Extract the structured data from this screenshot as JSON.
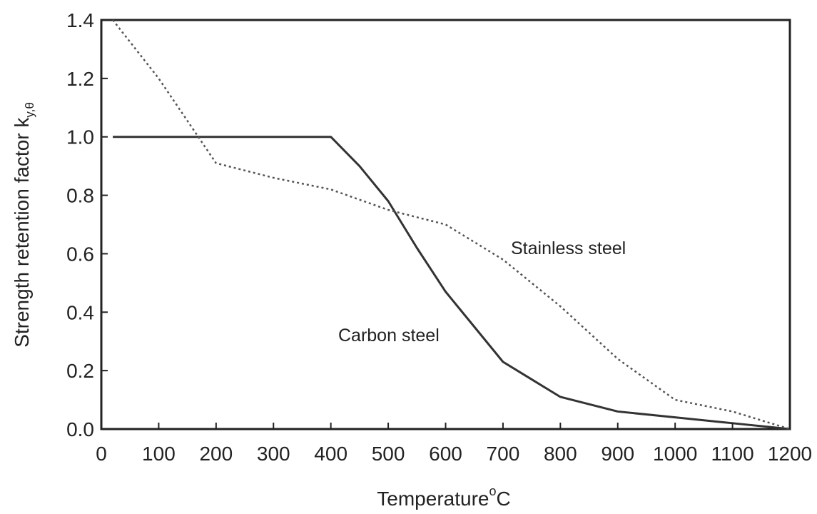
{
  "chart_data": {
    "type": "line",
    "xlabel": "Temperature",
    "xlabel_sup": "o",
    "xlabel_unit": "C",
    "ylabel": "Strength retention factor k",
    "ylabel_sub": "y,θ",
    "xlim": [
      0,
      1200
    ],
    "ylim": [
      0.0,
      1.4
    ],
    "x_ticks": [
      "0",
      "100",
      "200",
      "300",
      "400",
      "500",
      "600",
      "700",
      "800",
      "900",
      "1000",
      "1100",
      "1200"
    ],
    "y_ticks": [
      "0.0",
      "0.2",
      "0.4",
      "0.6",
      "0.8",
      "1.0",
      "1.2",
      "1.4"
    ],
    "grid": false,
    "legend": "none (inline labels)",
    "series": [
      {
        "name": "Carbon steel",
        "style": "solid",
        "color": "#333333",
        "x": [
          20,
          100,
          200,
          300,
          400,
          450,
          500,
          550,
          600,
          650,
          700,
          750,
          800,
          900,
          1000,
          1100,
          1200
        ],
        "y": [
          1.0,
          1.0,
          1.0,
          1.0,
          1.0,
          0.9,
          0.78,
          0.62,
          0.47,
          0.35,
          0.23,
          0.17,
          0.11,
          0.06,
          0.04,
          0.02,
          0.0
        ]
      },
      {
        "name": "Stainless steel",
        "style": "dotted",
        "color": "#555555",
        "x": [
          20,
          100,
          200,
          300,
          400,
          500,
          600,
          700,
          800,
          900,
          1000,
          1100,
          1200
        ],
        "y": [
          1.4,
          1.2,
          0.91,
          0.86,
          0.82,
          0.75,
          0.7,
          0.58,
          0.42,
          0.24,
          0.1,
          0.06,
          0.0
        ]
      }
    ],
    "annotations": [
      {
        "text": "Stainless steel",
        "series": 1
      },
      {
        "text": "Carbon steel",
        "series": 0
      }
    ]
  }
}
